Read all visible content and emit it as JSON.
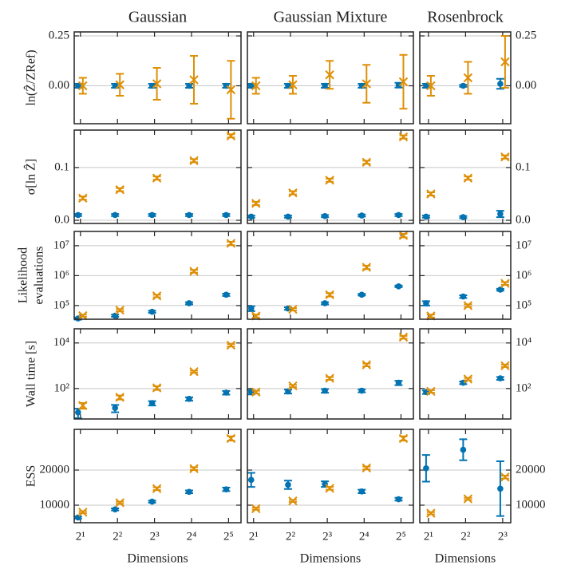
{
  "chart_data": [
    {
      "type": "scatter",
      "title": "Gaussian",
      "ylabel": [
        "ln(Ẑ/ZRef)"
      ],
      "xscale": "log",
      "x": [
        2,
        4,
        8,
        16,
        32
      ],
      "xlim": [
        1.78,
        40.4
      ],
      "xticks": [
        2,
        4,
        8,
        16,
        32
      ],
      "ylim": [
        -0.19,
        0.27
      ],
      "yticks": [
        {
          "value": 0,
          "label": "0.00"
        },
        {
          "value": 0.25,
          "label": "0.25"
        }
      ],
      "grid": true,
      "series": [
        {
          "color": "#0173b2",
          "marker": "o",
          "values": [
            0,
            0,
            0,
            0,
            0
          ],
          "errors": [
            0.01,
            0.01,
            0.01,
            0.01,
            0.01
          ]
        },
        {
          "color": "#de8f05",
          "marker": "x",
          "values": [
            0,
            0.005,
            0.01,
            0.03,
            -0.02
          ],
          "errors": [
            0.04,
            0.055,
            0.08,
            0.12,
            0.145
          ]
        }
      ]
    },
    {
      "type": "scatter",
      "title": "Gaussian Mixture",
      "xscale": "log",
      "x": [
        2,
        4,
        8,
        16,
        32
      ],
      "xlim": [
        1.78,
        40.4
      ],
      "xticks": [
        2,
        4,
        8,
        16,
        32
      ],
      "ylim": [
        -0.19,
        0.27
      ],
      "yticks": [
        0,
        0.25
      ],
      "grid": true,
      "series": [
        {
          "color": "#0173b2",
          "marker": "o",
          "values": [
            0,
            0,
            0,
            0,
            0.003
          ],
          "errors": [
            0.01,
            0.01,
            0.01,
            0.01,
            0.012
          ]
        },
        {
          "color": "#de8f05",
          "marker": "x",
          "values": [
            0,
            0.005,
            0.055,
            0.01,
            0.02
          ],
          "errors": [
            0.04,
            0.045,
            0.07,
            0.095,
            0.135
          ]
        }
      ]
    },
    {
      "type": "scatter",
      "title": "Rosenbrock",
      "xscale": "log",
      "x": [
        2,
        4,
        8
      ],
      "xlim": [
        1.7,
        9.3
      ],
      "xticks": [
        2,
        4,
        8
      ],
      "ylim": [
        -0.19,
        0.27
      ],
      "yticks": [
        {
          "value": 0,
          "label": "0.00"
        },
        {
          "value": 0.25,
          "label": "0.25"
        }
      ],
      "grid": true,
      "series": [
        {
          "color": "#0173b2",
          "marker": "o",
          "values": [
            0,
            0,
            0.01
          ],
          "errors": [
            0.01,
            0.005,
            0.025
          ]
        },
        {
          "color": "#de8f05",
          "marker": "x",
          "values": [
            0,
            0.04,
            0.12
          ],
          "errors": [
            0.05,
            0.08,
            0.13
          ]
        }
      ]
    },
    {
      "type": "scatter",
      "ylabel": [
        "σ[ln Ẑ]"
      ],
      "xscale": "log",
      "x": [
        2,
        4,
        8,
        16,
        32
      ],
      "xlim": [
        1.78,
        40.4
      ],
      "xticks": [
        2,
        4,
        8,
        16,
        32
      ],
      "ylim": [
        -0.006,
        0.171
      ],
      "yticks": [
        {
          "value": 0,
          "label": "0.0"
        },
        0.1
      ],
      "grid": true,
      "series": [
        {
          "color": "#0173b2",
          "marker": "o",
          "values": [
            0.01,
            0.01,
            0.01,
            0.01,
            0.01
          ],
          "errors": [
            0.002,
            0.002,
            0.002,
            0.002,
            0.002
          ]
        },
        {
          "color": "#de8f05",
          "marker": "x",
          "values": [
            0.042,
            0.058,
            0.08,
            0.113,
            0.16
          ],
          "errors": [
            0.003,
            0.003,
            0.003,
            0.003,
            0.003
          ]
        }
      ]
    },
    {
      "type": "scatter",
      "xscale": "log",
      "x": [
        2,
        4,
        8,
        16,
        32
      ],
      "xlim": [
        1.78,
        40.4
      ],
      "xticks": [
        2,
        4,
        8,
        16,
        32
      ],
      "ylim": [
        -0.006,
        0.171
      ],
      "yticks": [
        0,
        0.1
      ],
      "grid": true,
      "series": [
        {
          "color": "#0173b2",
          "marker": "o",
          "values": [
            0.007,
            0.007,
            0.008,
            0.009,
            0.01
          ],
          "errors": [
            0.002,
            0.002,
            0.002,
            0.002,
            0.002
          ]
        },
        {
          "color": "#de8f05",
          "marker": "x",
          "values": [
            0.032,
            0.052,
            0.076,
            0.11,
            0.158
          ],
          "errors": [
            0.003,
            0.003,
            0.003,
            0.003,
            0.003
          ]
        }
      ]
    },
    {
      "type": "scatter",
      "xscale": "log",
      "x": [
        2,
        4,
        8
      ],
      "xlim": [
        1.7,
        9.3
      ],
      "xticks": [
        2,
        4,
        8
      ],
      "ylim": [
        -0.006,
        0.171
      ],
      "yticks": [
        {
          "value": 0,
          "label": "0.0"
        },
        0.1
      ],
      "grid": true,
      "series": [
        {
          "color": "#0173b2",
          "marker": "o",
          "values": [
            0.007,
            0.006,
            0.012
          ],
          "errors": [
            0.002,
            0.002,
            0.006
          ]
        },
        {
          "color": "#de8f05",
          "marker": "x",
          "values": [
            0.05,
            0.08,
            0.12
          ],
          "errors": [
            0.003,
            0.003,
            0.003
          ]
        }
      ]
    },
    {
      "type": "scatter",
      "ylabel": [
        "Likelihood",
        "evaluations"
      ],
      "xscale": "log",
      "yscale": "log",
      "x": [
        2,
        4,
        8,
        16,
        32
      ],
      "xlim": [
        1.78,
        40.4
      ],
      "xticks": [
        2,
        4,
        8,
        16,
        32
      ],
      "ylim": [
        35000,
        30000000
      ],
      "yticks": [
        {
          "value": 100000,
          "label": "10⁵"
        },
        {
          "value": 1000000,
          "label": "10⁶"
        },
        {
          "value": 10000000,
          "label": "10⁷"
        }
      ],
      "grid": true,
      "series": [
        {
          "color": "#0173b2",
          "marker": "o",
          "values": [
            37000,
            46000,
            62000,
            120000,
            230000
          ],
          "errors": [
            3000,
            4000,
            5000,
            10000,
            20000
          ]
        },
        {
          "color": "#de8f05",
          "marker": "x",
          "values": [
            46000,
            70000,
            210000,
            1400000,
            12000000
          ],
          "errors": [
            4000,
            6000,
            20000,
            150000,
            1500000
          ]
        }
      ]
    },
    {
      "type": "scatter",
      "xscale": "log",
      "yscale": "log",
      "x": [
        2,
        4,
        8,
        16,
        32
      ],
      "xlim": [
        1.78,
        40.4
      ],
      "xticks": [
        2,
        4,
        8,
        16,
        32
      ],
      "ylim": [
        35000,
        30000000
      ],
      "yticks": [
        100000,
        1000000,
        10000000
      ],
      "grid": true,
      "series": [
        {
          "color": "#0173b2",
          "marker": "o",
          "values": [
            80000,
            80000,
            120000,
            230000,
            440000
          ],
          "errors": [
            15000,
            8000,
            10000,
            15000,
            30000
          ]
        },
        {
          "color": "#de8f05",
          "marker": "x",
          "values": [
            45000,
            75000,
            230000,
            1900000,
            22000000
          ],
          "errors": [
            5000,
            7000,
            30000,
            250000,
            3000000
          ]
        }
      ]
    },
    {
      "type": "scatter",
      "xscale": "log",
      "yscale": "log",
      "x": [
        2,
        4,
        8
      ],
      "xlim": [
        1.7,
        9.3
      ],
      "xticks": [
        2,
        4,
        8
      ],
      "ylim": [
        35000,
        30000000
      ],
      "yticks": [
        {
          "value": 100000,
          "label": "10⁵"
        },
        {
          "value": 1000000,
          "label": "10⁶"
        },
        {
          "value": 10000000,
          "label": "10⁷"
        }
      ],
      "grid": true,
      "series": [
        {
          "color": "#0173b2",
          "marker": "o",
          "values": [
            120000,
            200000,
            340000
          ],
          "errors": [
            20000,
            20000,
            25000
          ]
        },
        {
          "color": "#de8f05",
          "marker": "x",
          "values": [
            45000,
            100000,
            550000
          ],
          "errors": [
            5000,
            10000,
            60000
          ]
        }
      ]
    },
    {
      "type": "scatter",
      "ylabel": [
        "Wall time [s]"
      ],
      "xscale": "log",
      "yscale": "log",
      "x": [
        2,
        4,
        8,
        16,
        32
      ],
      "xlim": [
        1.78,
        40.4
      ],
      "xticks": [
        2,
        4,
        8,
        16,
        32
      ],
      "ylim": [
        4.6,
        42000
      ],
      "yticks": [
        {
          "value": 100,
          "label": "10²"
        },
        {
          "value": 10000,
          "label": "10⁴"
        }
      ],
      "grid": true,
      "series": [
        {
          "color": "#0173b2",
          "marker": "o",
          "values": [
            9,
            14,
            23,
            35,
            66
          ],
          "errors": [
            4,
            5,
            5,
            6,
            12
          ]
        },
        {
          "color": "#de8f05",
          "marker": "x",
          "values": [
            18,
            41,
            107,
            550,
            8000
          ],
          "errors": [
            5,
            8,
            20,
            60,
            1000
          ]
        }
      ]
    },
    {
      "type": "scatter",
      "xscale": "log",
      "yscale": "log",
      "x": [
        2,
        4,
        8,
        16,
        32
      ],
      "xlim": [
        1.78,
        40.4
      ],
      "xticks": [
        2,
        4,
        8,
        16,
        32
      ],
      "ylim": [
        4.6,
        42000
      ],
      "yticks": [
        100,
        10000
      ],
      "grid": true,
      "series": [
        {
          "color": "#0173b2",
          "marker": "o",
          "values": [
            70,
            75,
            80,
            80,
            180
          ],
          "errors": [
            15,
            15,
            15,
            12,
            40
          ]
        },
        {
          "color": "#de8f05",
          "marker": "x",
          "values": [
            70,
            130,
            280,
            1100,
            18000
          ],
          "errors": [
            10,
            15,
            40,
            150,
            2500
          ]
        }
      ]
    },
    {
      "type": "scatter",
      "xscale": "log",
      "yscale": "log",
      "x": [
        2,
        4,
        8
      ],
      "xlim": [
        1.7,
        9.3
      ],
      "xticks": [
        2,
        4,
        8
      ],
      "ylim": [
        4.6,
        42000
      ],
      "yticks": [
        {
          "value": 100,
          "label": "10²"
        },
        {
          "value": 10000,
          "label": "10⁴"
        }
      ],
      "grid": true,
      "series": [
        {
          "color": "#0173b2",
          "marker": "o",
          "values": [
            70,
            180,
            280
          ],
          "errors": [
            12,
            25,
            40
          ]
        },
        {
          "color": "#de8f05",
          "marker": "x",
          "values": [
            75,
            260,
            1000
          ],
          "errors": [
            10,
            30,
            120
          ]
        }
      ]
    },
    {
      "type": "scatter",
      "ylabel": [
        "ESS"
      ],
      "xlabel": "Dimensions",
      "xscale": "log",
      "x": [
        2,
        4,
        8,
        16,
        32
      ],
      "xlim": [
        1.78,
        40.4
      ],
      "xticks": [
        {
          "value": 2,
          "label": "2¹"
        },
        {
          "value": 4,
          "label": "2²"
        },
        {
          "value": 8,
          "label": "2³"
        },
        {
          "value": 16,
          "label": "2⁴"
        },
        {
          "value": 32,
          "label": "2⁵"
        }
      ],
      "ylim": [
        5000,
        31600
      ],
      "yticks": [
        10000,
        20000
      ],
      "grid": true,
      "series": [
        {
          "color": "#0173b2",
          "marker": "o",
          "values": [
            6500,
            8800,
            11000,
            13800,
            14500
          ],
          "errors": [
            300,
            300,
            300,
            400,
            500
          ]
        },
        {
          "color": "#de8f05",
          "marker": "x",
          "values": [
            8000,
            10700,
            14700,
            20400,
            29000
          ],
          "errors": [
            300,
            300,
            400,
            400,
            600
          ]
        }
      ]
    },
    {
      "type": "scatter",
      "xlabel": "Dimensions",
      "xscale": "log",
      "x": [
        2,
        4,
        8,
        16,
        32
      ],
      "xlim": [
        1.78,
        40.4
      ],
      "xticks": [
        {
          "value": 2,
          "label": "2¹"
        },
        {
          "value": 4,
          "label": "2²"
        },
        {
          "value": 8,
          "label": "2³"
        },
        {
          "value": 16,
          "label": "2⁴"
        },
        {
          "value": 32,
          "label": "2⁵"
        }
      ],
      "ylim": [
        5000,
        31600
      ],
      "yticks": [
        10000,
        20000
      ],
      "grid": true,
      "series": [
        {
          "color": "#0173b2",
          "marker": "o",
          "values": [
            17200,
            15800,
            16000,
            13900,
            11700
          ],
          "errors": [
            2000,
            1200,
            800,
            500,
            400
          ]
        },
        {
          "color": "#de8f05",
          "marker": "x",
          "values": [
            9000,
            11200,
            14800,
            20600,
            29000
          ],
          "errors": [
            300,
            300,
            400,
            400,
            600
          ]
        }
      ]
    },
    {
      "type": "scatter",
      "xlabel": "Dimensions",
      "xscale": "log",
      "x": [
        2,
        4,
        8
      ],
      "xlim": [
        1.7,
        9.3
      ],
      "xticks": [
        {
          "value": 2,
          "label": "2¹"
        },
        {
          "value": 4,
          "label": "2²"
        },
        {
          "value": 8,
          "label": "2³"
        }
      ],
      "ylim": [
        5000,
        31600
      ],
      "yticks": [
        10000,
        20000
      ],
      "grid": true,
      "series": [
        {
          "color": "#0173b2",
          "marker": "o",
          "values": [
            20500,
            25800,
            14700
          ],
          "errors": [
            3800,
            3000,
            7800
          ]
        },
        {
          "color": "#de8f05",
          "marker": "x",
          "values": [
            7700,
            11800,
            18000
          ],
          "errors": [
            300,
            300,
            400
          ]
        }
      ]
    }
  ]
}
